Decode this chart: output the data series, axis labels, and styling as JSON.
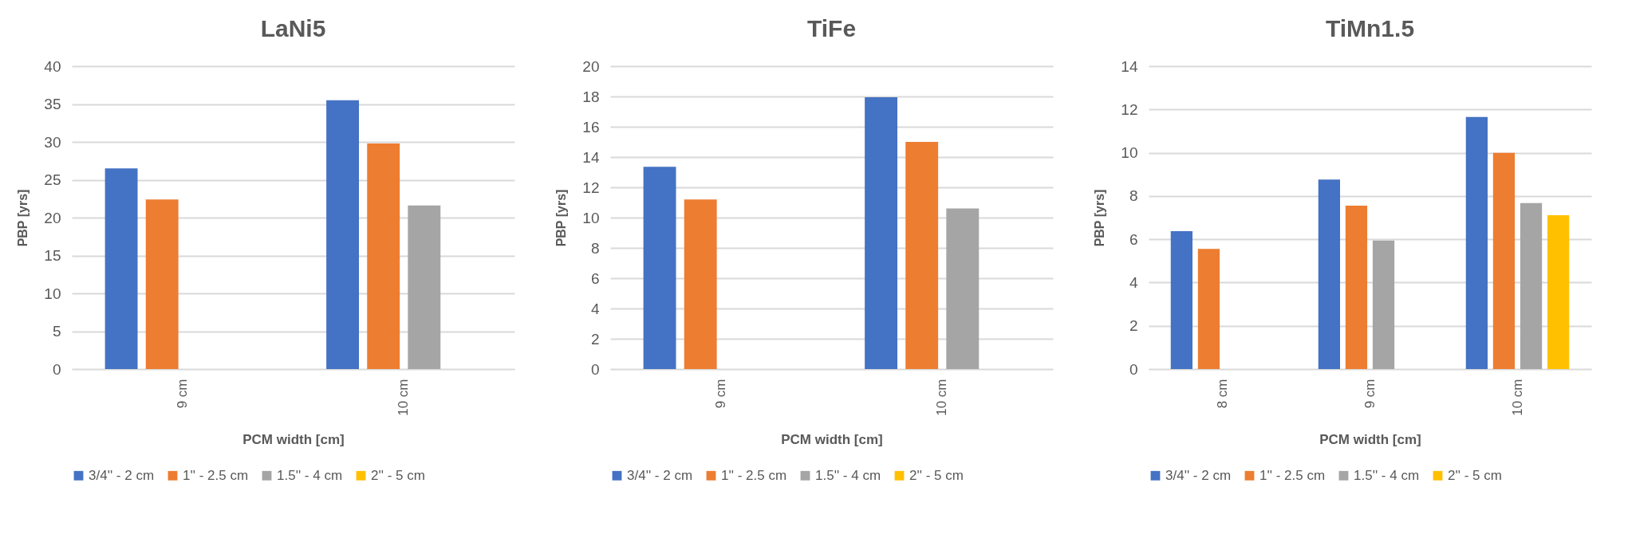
{
  "chart_data": [
    {
      "type": "bar",
      "title": "LaNi5",
      "xlabel": "PCM width [cm]",
      "ylabel": "PBP [yrs]",
      "categories": [
        "9 cm",
        "10 cm"
      ],
      "ylim": [
        0,
        40
      ],
      "yticks": [
        0,
        5,
        10,
        15,
        20,
        25,
        30,
        35,
        40
      ],
      "grid": "y",
      "legend": "bottom",
      "series": [
        {
          "name": "3/4'' - 2 cm",
          "color": "#4472c4",
          "values": [
            26.5,
            35.5
          ]
        },
        {
          "name": "1'' - 2.5 cm",
          "color": "#ed7d31",
          "values": [
            22.4,
            29.8
          ]
        },
        {
          "name": "1.5'' - 4 cm",
          "color": "#a5a5a5",
          "values": [
            null,
            21.6
          ]
        },
        {
          "name": "2'' - 5 cm",
          "color": "#ffc000",
          "values": [
            null,
            null
          ]
        }
      ]
    },
    {
      "type": "bar",
      "title": "TiFe",
      "xlabel": "PCM width [cm]",
      "ylabel": "PBP [yrs]",
      "categories": [
        "9 cm",
        "10 cm"
      ],
      "ylim": [
        0,
        20
      ],
      "yticks": [
        0,
        2,
        4,
        6,
        8,
        10,
        12,
        14,
        16,
        18,
        20
      ],
      "grid": "y",
      "legend": "bottom",
      "series": [
        {
          "name": "3/4'' - 2 cm",
          "color": "#4472c4",
          "values": [
            13.35,
            17.95
          ]
        },
        {
          "name": "1'' - 2.5 cm",
          "color": "#ed7d31",
          "values": [
            11.2,
            15.0
          ]
        },
        {
          "name": "1.5'' - 4 cm",
          "color": "#a5a5a5",
          "values": [
            null,
            10.6
          ]
        },
        {
          "name": "2'' - 5 cm",
          "color": "#ffc000",
          "values": [
            null,
            null
          ]
        }
      ]
    },
    {
      "type": "bar",
      "title": "TiMn1.5",
      "xlabel": "PCM width [cm]",
      "ylabel": "PBP [yrs]",
      "categories": [
        "8 cm",
        "9 cm",
        "10 cm"
      ],
      "ylim": [
        0,
        14
      ],
      "yticks": [
        0,
        2,
        4,
        6,
        8,
        10,
        12,
        14
      ],
      "grid": "y",
      "legend": "bottom",
      "series": [
        {
          "name": "3/4'' - 2 cm",
          "color": "#4472c4",
          "values": [
            6.37,
            8.76,
            11.65
          ]
        },
        {
          "name": "1'' - 2.5 cm",
          "color": "#ed7d31",
          "values": [
            5.55,
            7.55,
            9.99
          ]
        },
        {
          "name": "1.5'' - 4 cm",
          "color": "#a5a5a5",
          "values": [
            null,
            5.94,
            7.67
          ]
        },
        {
          "name": "2'' - 5 cm",
          "color": "#ffc000",
          "values": [
            null,
            null,
            7.11
          ]
        }
      ]
    }
  ]
}
